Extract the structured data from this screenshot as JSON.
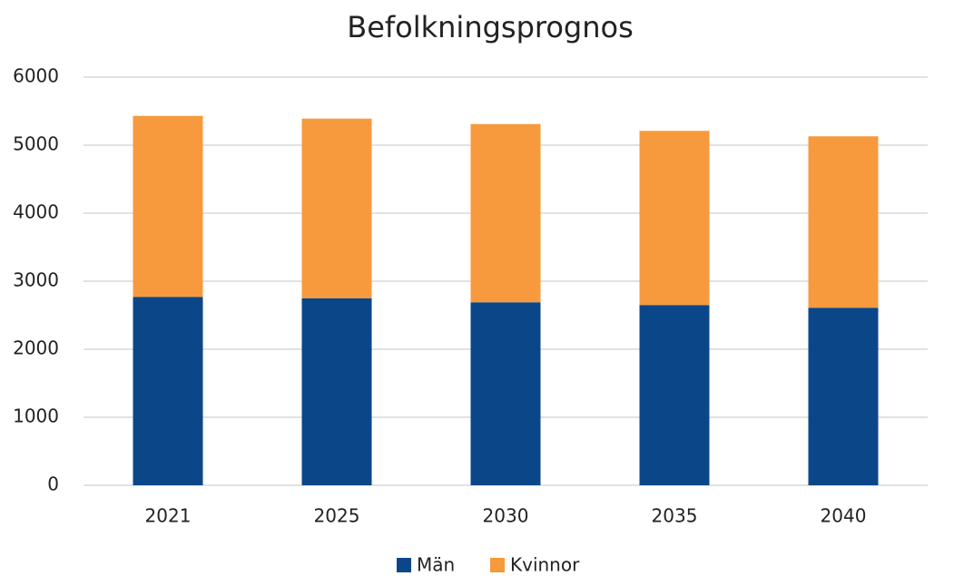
{
  "chart_data": {
    "type": "stacked_bar",
    "title": "Befolkningsprognos",
    "categories": [
      "2021",
      "2025",
      "2030",
      "2035",
      "2040"
    ],
    "series": [
      {
        "name": "Män",
        "color": "#0b4788",
        "values": [
          2770,
          2750,
          2690,
          2650,
          2610
        ]
      },
      {
        "name": "Kvinnor",
        "color": "#f79a3e",
        "values": [
          2660,
          2640,
          2620,
          2560,
          2520
        ]
      }
    ],
    "ylim": [
      0,
      6000
    ],
    "yticks": [
      0,
      1000,
      2000,
      3000,
      4000,
      5000,
      6000
    ],
    "grid": true,
    "legend": "bottom"
  }
}
